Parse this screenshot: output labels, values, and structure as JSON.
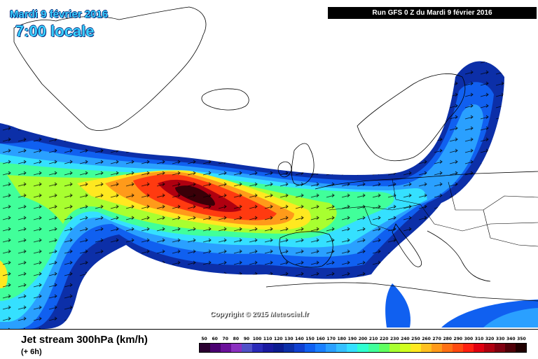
{
  "header": {
    "date_label": "Mardi 9 février 2016",
    "time_label": "7:00 locale",
    "run_label": "Run GFS 0 Z du Mardi 9 février 2016"
  },
  "map": {
    "copyright": "Copyright © 2015 Meteociel.fr",
    "jet_band_colors": [
      "#0c2fa8",
      "#1060f0",
      "#2aa0ff",
      "#35e0ff",
      "#41ff9a",
      "#a8ff30",
      "#ffe820",
      "#ff9a1a",
      "#ff3a10",
      "#b00010",
      "#3a0008"
    ]
  },
  "footer": {
    "title": "Jet stream 300hPa (km/h)",
    "subtitle": "(+ 6h)"
  },
  "scale": {
    "values": [
      "50",
      "60",
      "70",
      "80",
      "90",
      "100",
      "110",
      "120",
      "130",
      "140",
      "150",
      "160",
      "170",
      "180",
      "190",
      "200",
      "210",
      "220",
      "230",
      "240",
      "250",
      "260",
      "270",
      "280",
      "290",
      "300",
      "310",
      "320",
      "330",
      "340",
      "350"
    ],
    "colors": [
      "#2a0030",
      "#4a0070",
      "#6a109a",
      "#8a30c0",
      "#5050c8",
      "#2a2ab8",
      "#1a1aa0",
      "#0c1c90",
      "#0c2fa8",
      "#1040d0",
      "#1060f0",
      "#1a80ff",
      "#2aa0ff",
      "#35c0ff",
      "#35e0ff",
      "#30ffd0",
      "#41ff9a",
      "#60ff60",
      "#a8ff30",
      "#d0ff20",
      "#ffe820",
      "#ffc020",
      "#ff9a1a",
      "#ff7014",
      "#ff4a10",
      "#ff2010",
      "#e00010",
      "#b00010",
      "#800010",
      "#500008",
      "#200000"
    ]
  }
}
